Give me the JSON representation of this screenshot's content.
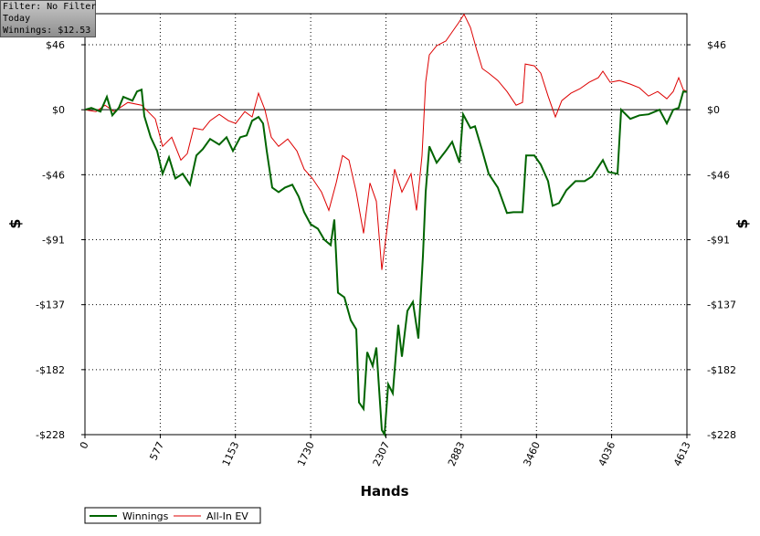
{
  "chart_data": {
    "type": "line",
    "info": [
      "Filter: No Filter",
      "Today",
      "Winnings: $12.53"
    ],
    "xlabel": "Hands",
    "ylabel": "$",
    "y2label": "$",
    "xlim": [
      0,
      4613
    ],
    "ylim": [
      -228,
      67.4
    ],
    "xticks": [
      0,
      577,
      1153,
      1730,
      2307,
      2883,
      3460,
      4036,
      4613
    ],
    "yticks": [
      {
        "value": 45.6,
        "label": "$46"
      },
      {
        "value": 0,
        "label": "$0"
      },
      {
        "value": -45.6,
        "label": "-$46"
      },
      {
        "value": -91.2,
        "label": "-$91"
      },
      {
        "value": -136.8,
        "label": "-$137"
      },
      {
        "value": -182.4,
        "label": "-$182"
      },
      {
        "value": -228,
        "label": "-$228"
      }
    ],
    "grid": true,
    "series": [
      {
        "name": "Winnings",
        "color": "#006400",
        "x": [
          0,
          49,
          119,
          168,
          210,
          259,
          294,
          364,
          399,
          434,
          455,
          504,
          553,
          595,
          644,
          693,
          749,
          805,
          854,
          903,
          959,
          1029,
          1085,
          1134,
          1190,
          1239,
          1281,
          1330,
          1365,
          1393,
          1435,
          1484,
          1533,
          1589,
          1638,
          1680,
          1729,
          1785,
          1834,
          1883,
          1911,
          1939,
          1988,
          2037,
          2079,
          2100,
          2135,
          2163,
          2205,
          2233,
          2275,
          2296,
          2324,
          2359,
          2401,
          2429,
          2471,
          2513,
          2555,
          2590,
          2611,
          2639,
          2695,
          2765,
          2814,
          2870,
          2898,
          2954,
          2989,
          3045,
          3094,
          3164,
          3234,
          3283,
          3353,
          3381,
          3444,
          3493,
          3549,
          3584,
          3633,
          3689,
          3759,
          3829,
          3885,
          3969,
          4011,
          4081,
          4109,
          4179,
          4249,
          4319,
          4403,
          4459,
          4508,
          4550,
          4585,
          4613
        ],
        "values": [
          0,
          1.3,
          -1.3,
          9.0,
          -3.9,
          1.3,
          9.0,
          6.4,
          12.8,
          14.1,
          -4.5,
          -19.3,
          -28.9,
          -44.9,
          -33.4,
          -48.2,
          -44.9,
          -52.6,
          -32.1,
          -27.6,
          -20.5,
          -24.4,
          -19.3,
          -28.9,
          -19.3,
          -18.0,
          -7.7,
          -5.1,
          -9.6,
          -28.9,
          -54.6,
          -57.8,
          -54.6,
          -52.6,
          -61.0,
          -71.9,
          -80.3,
          -83.5,
          -91.2,
          -95.0,
          -77.0,
          -128.4,
          -131.6,
          -147.7,
          -154.1,
          -205.4,
          -209.9,
          -170.1,
          -179.8,
          -166.9,
          -224.7,
          -227.9,
          -192.6,
          -199.0,
          -150.9,
          -173.3,
          -141.2,
          -134.8,
          -160.5,
          -102.7,
          -57.8,
          -25.7,
          -37.2,
          -28.9,
          -22.5,
          -37.2,
          -3.2,
          -12.8,
          -11.6,
          -28.9,
          -44.9,
          -54.6,
          -72.5,
          -71.9,
          -71.9,
          -32.1,
          -32.1,
          -38.5,
          -50.1,
          -67.4,
          -65.5,
          -56.5,
          -50.1,
          -50.1,
          -46.9,
          -35.3,
          -43.7,
          -44.9,
          0,
          -6.4,
          -3.9,
          -3.2,
          0,
          -9.6,
          0,
          1.3,
          12.8,
          12.53
        ]
      },
      {
        "name": "All-In EV",
        "color": "#dd0000",
        "x": [
          0,
          84,
          154,
          224,
          329,
          434,
          483,
          539,
          595,
          665,
          735,
          784,
          833,
          903,
          959,
          1029,
          1099,
          1155,
          1225,
          1281,
          1330,
          1379,
          1428,
          1484,
          1554,
          1624,
          1680,
          1743,
          1813,
          1869,
          1925,
          1974,
          2023,
          2079,
          2135,
          2184,
          2233,
          2275,
          2324,
          2373,
          2429,
          2499,
          2541,
          2583,
          2611,
          2639,
          2695,
          2765,
          2814,
          2863,
          2905,
          2954,
          3003,
          3045,
          3094,
          3164,
          3234,
          3304,
          3353,
          3374,
          3444,
          3493,
          3549,
          3605,
          3654,
          3724,
          3794,
          3864,
          3934,
          3969,
          4025,
          4095,
          4179,
          4249,
          4319,
          4389,
          4459,
          4508,
          4550,
          4585,
          4613
        ],
        "values": [
          0,
          -1.3,
          3.2,
          -1.3,
          5.1,
          3.2,
          -1.3,
          -6.4,
          -25.7,
          -19.3,
          -35.3,
          -30.8,
          -12.8,
          -14.1,
          -7.7,
          -3.2,
          -7.7,
          -9.6,
          -1.3,
          -5.1,
          11.6,
          0,
          -19.3,
          -25.7,
          -20.5,
          -28.9,
          -41.7,
          -48.2,
          -57.8,
          -70.6,
          -51.4,
          -32.1,
          -35.3,
          -57.8,
          -86.7,
          -51.4,
          -64.2,
          -112.4,
          -77.0,
          -41.7,
          -57.8,
          -44.9,
          -70.6,
          -32.1,
          19.3,
          38.5,
          44.9,
          48.2,
          54.6,
          61.0,
          67.0,
          57.8,
          41.7,
          28.9,
          25.7,
          20.5,
          12.8,
          3.2,
          5.1,
          32.1,
          30.8,
          25.7,
          9.6,
          -5.1,
          6.4,
          11.6,
          14.8,
          19.3,
          22.5,
          27.0,
          19.3,
          20.5,
          18.0,
          15.4,
          9.6,
          12.8,
          7.7,
          12.8,
          22.5,
          14.1,
          12.8
        ]
      }
    ]
  }
}
